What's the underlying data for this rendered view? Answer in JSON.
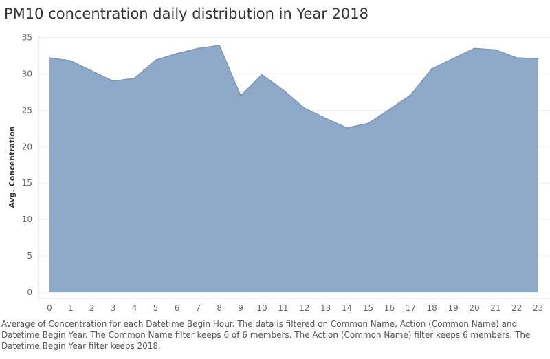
{
  "chart_data": {
    "type": "area",
    "title": "PM10 concentration daily distribution in Year 2018",
    "xlabel": "",
    "ylabel": "Avg. Concentration",
    "x": [
      0,
      1,
      2,
      3,
      4,
      5,
      6,
      7,
      8,
      9,
      10,
      11,
      12,
      13,
      14,
      15,
      16,
      17,
      18,
      19,
      20,
      21,
      22,
      23
    ],
    "values": [
      32.2,
      31.8,
      30.4,
      29.0,
      29.4,
      31.9,
      32.8,
      33.5,
      33.9,
      27.0,
      29.9,
      27.8,
      25.3,
      23.9,
      22.6,
      23.2,
      25.1,
      27.1,
      30.7,
      32.1,
      33.5,
      33.3,
      32.2,
      32.1
    ],
    "ylim": [
      0,
      35
    ],
    "yticks": [
      "0",
      "5",
      "10",
      "15",
      "20",
      "25",
      "30",
      "35"
    ],
    "xticks": [
      "0",
      "1",
      "2",
      "3",
      "4",
      "5",
      "6",
      "7",
      "8",
      "9",
      "10",
      "11",
      "12",
      "13",
      "14",
      "15",
      "16",
      "17",
      "18",
      "19",
      "20",
      "21",
      "22",
      "23"
    ],
    "grid": true,
    "fill_color": "#8eaac8",
    "stroke_color": "#7a98bb"
  },
  "caption": "Average of Concentration for each Datetime Begin Hour. The data is filtered on Common Name, Action (Common Name) and Datetime Begin Year. The Common Name filter keeps 6 of 6 members. The Action (Common Name) filter keeps 6 members. The Datetime Begin Year filter keeps 2018."
}
